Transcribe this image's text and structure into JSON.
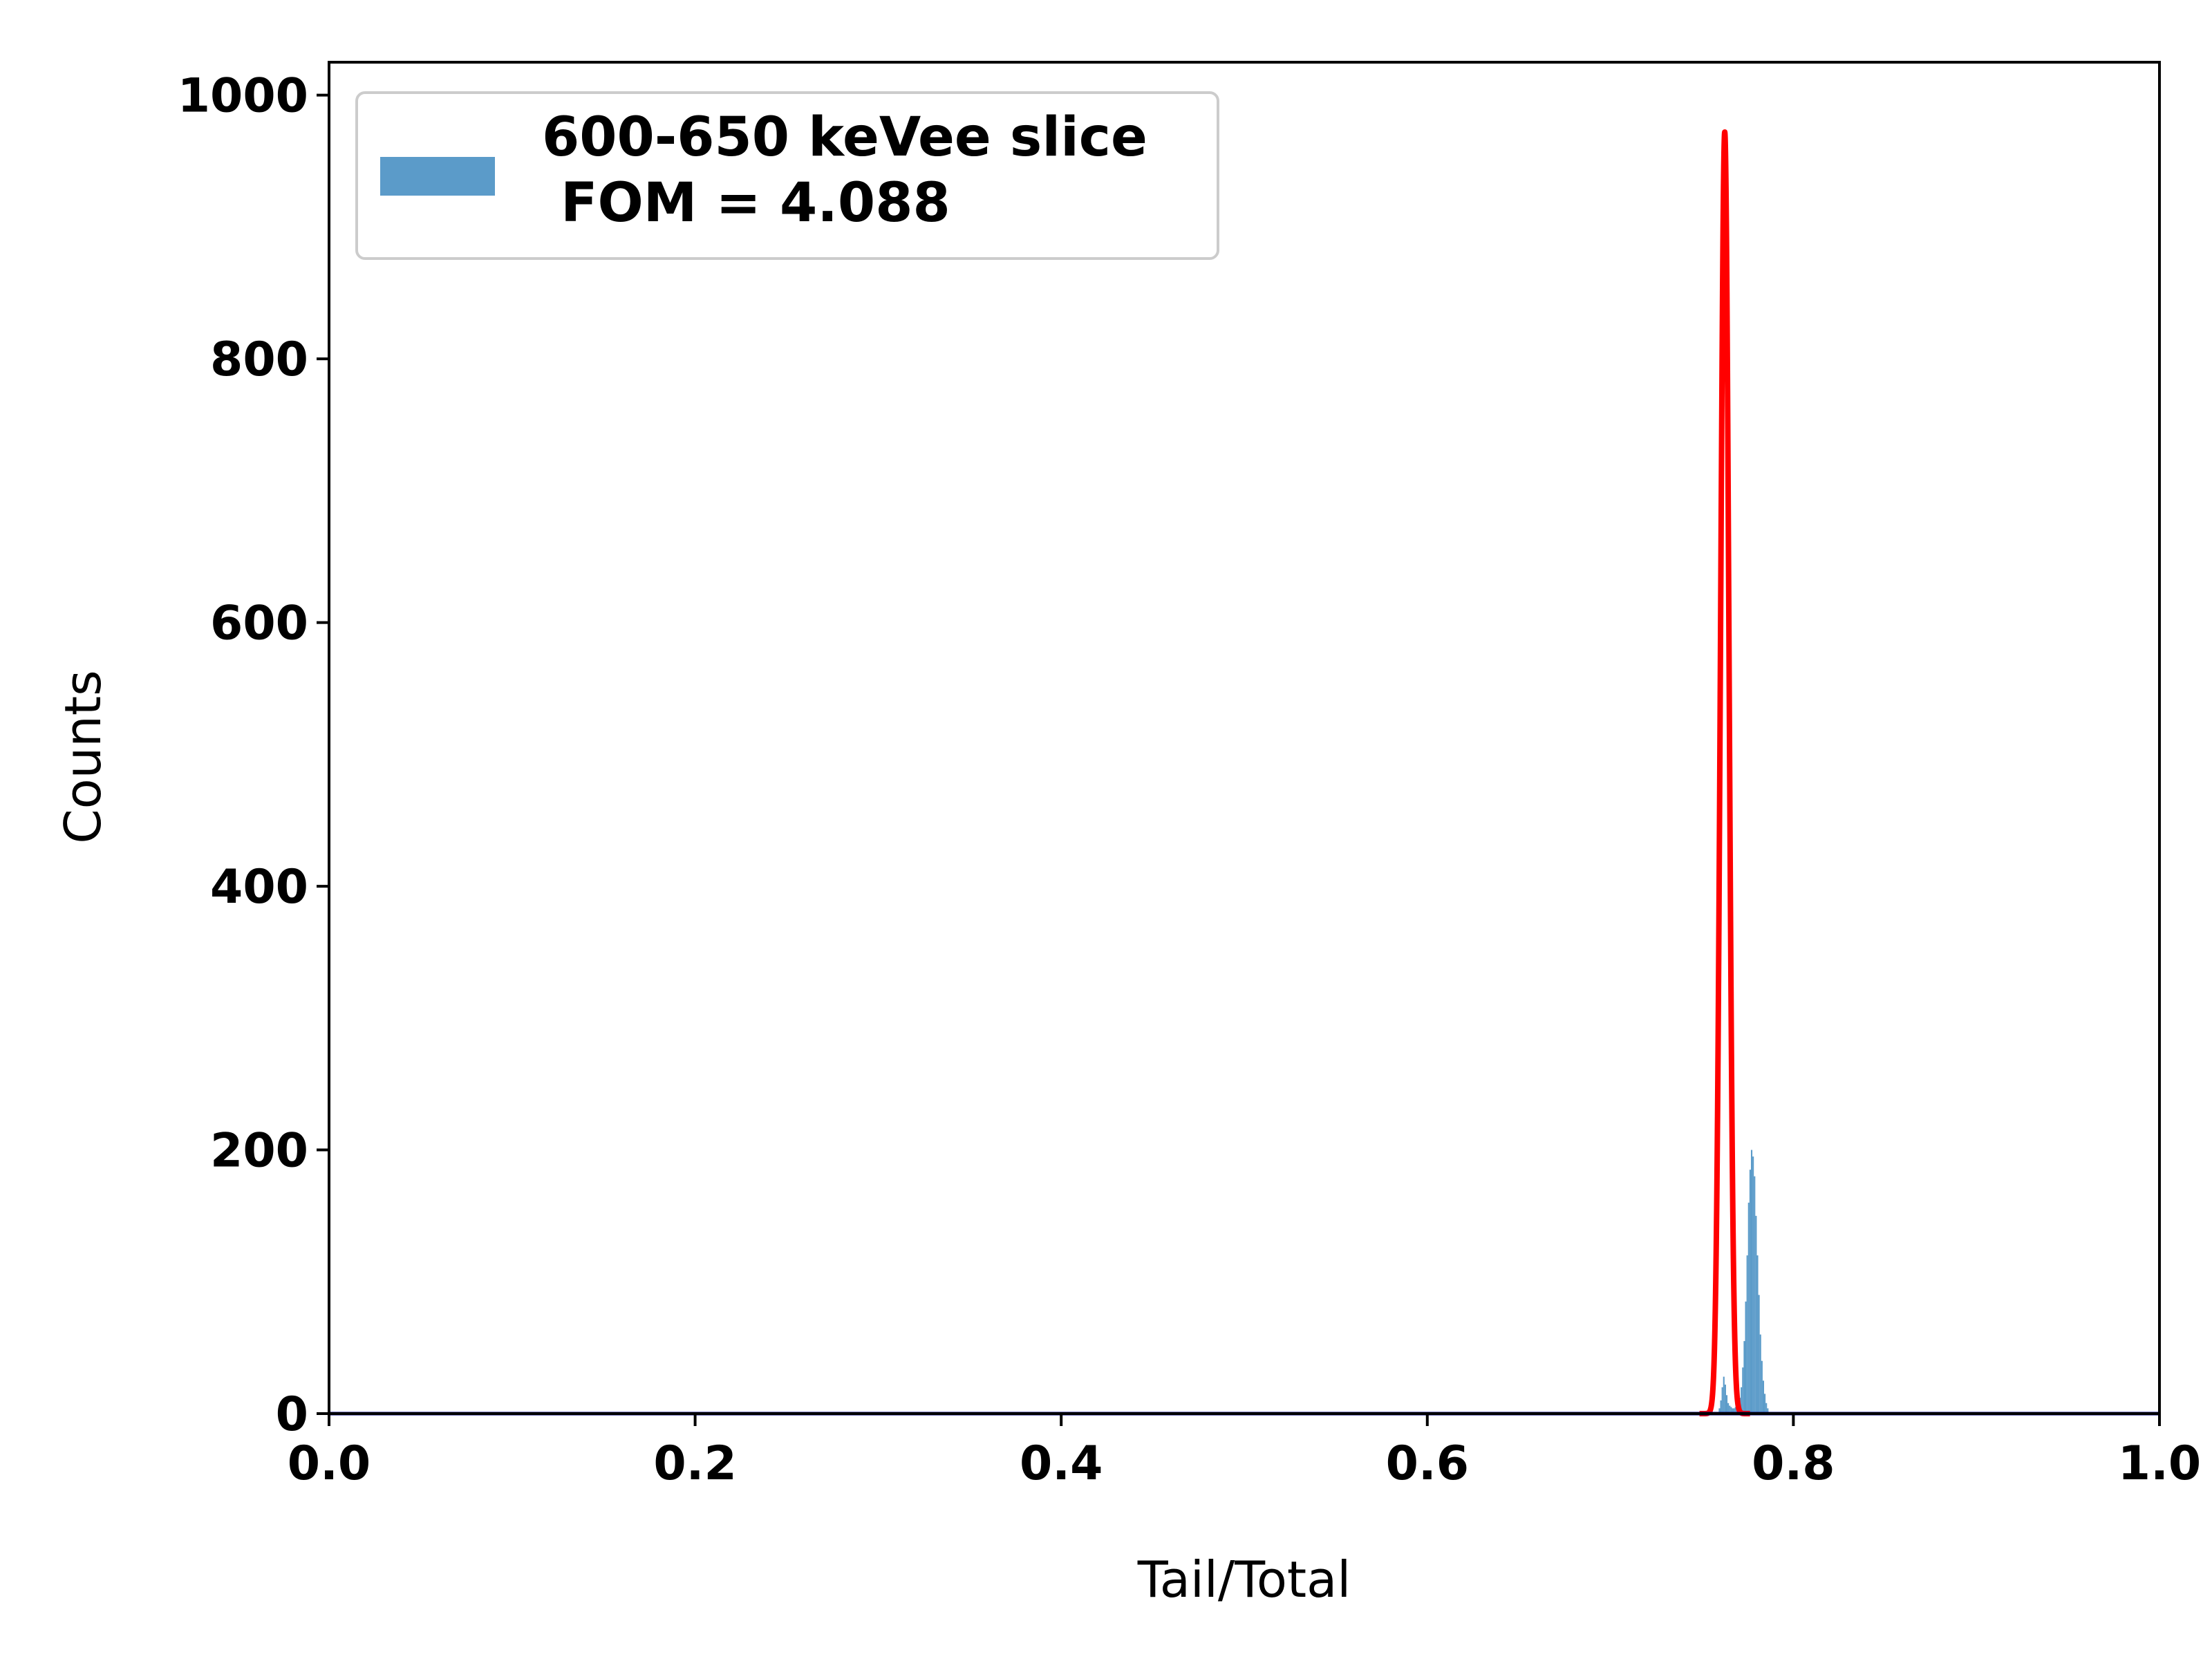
{
  "chart_data": {
    "type": "bar",
    "title": "",
    "xlabel": "Tail/Total",
    "ylabel": "Counts",
    "xlim": [
      0.0,
      1.0
    ],
    "ylim": [
      0,
      1025
    ],
    "x_ticks": [
      0.0,
      0.2,
      0.4,
      0.6,
      0.8,
      1.0
    ],
    "x_tick_labels": [
      "0.0",
      "0.2",
      "0.4",
      "0.6",
      "0.8",
      "1.0"
    ],
    "y_ticks": [
      0,
      200,
      400,
      600,
      800,
      1000
    ],
    "y_tick_labels": [
      "0",
      "200",
      "400",
      "600",
      "800",
      "1000"
    ],
    "grid": false,
    "legend": {
      "placement": "upper-left",
      "lines": [
        "600-650 keVee slice",
        " FOM = 4.088"
      ]
    },
    "colors": {
      "histogram": "#5b9bc9",
      "fit": "#ff0000",
      "baseline": "#00008b"
    },
    "histogram": {
      "bin_width": 0.0008,
      "bins": [
        {
          "x": 0.7596,
          "y": 4
        },
        {
          "x": 0.7604,
          "y": 10
        },
        {
          "x": 0.7612,
          "y": 20
        },
        {
          "x": 0.762,
          "y": 28
        },
        {
          "x": 0.7628,
          "y": 22
        },
        {
          "x": 0.7636,
          "y": 14
        },
        {
          "x": 0.7644,
          "y": 8
        },
        {
          "x": 0.7652,
          "y": 6
        },
        {
          "x": 0.766,
          "y": 5
        },
        {
          "x": 0.7668,
          "y": 4
        },
        {
          "x": 0.7676,
          "y": 4
        },
        {
          "x": 0.7684,
          "y": 5
        },
        {
          "x": 0.7692,
          "y": 6
        },
        {
          "x": 0.77,
          "y": 8
        },
        {
          "x": 0.7708,
          "y": 12
        },
        {
          "x": 0.7716,
          "y": 20
        },
        {
          "x": 0.7724,
          "y": 35
        },
        {
          "x": 0.7732,
          "y": 55
        },
        {
          "x": 0.774,
          "y": 85
        },
        {
          "x": 0.7748,
          "y": 120
        },
        {
          "x": 0.7756,
          "y": 160
        },
        {
          "x": 0.7764,
          "y": 185
        },
        {
          "x": 0.7772,
          "y": 200
        },
        {
          "x": 0.778,
          "y": 195
        },
        {
          "x": 0.7788,
          "y": 180
        },
        {
          "x": 0.7796,
          "y": 150
        },
        {
          "x": 0.7804,
          "y": 120
        },
        {
          "x": 0.7812,
          "y": 90
        },
        {
          "x": 0.782,
          "y": 60
        },
        {
          "x": 0.7828,
          "y": 40
        },
        {
          "x": 0.7836,
          "y": 25
        },
        {
          "x": 0.7844,
          "y": 15
        },
        {
          "x": 0.7852,
          "y": 8
        },
        {
          "x": 0.786,
          "y": 4
        }
      ]
    },
    "fit": {
      "type": "gaussian",
      "amplitude": 972,
      "mean": 0.7625,
      "sigma": 0.0023
    },
    "baseline": {
      "y": 0
    }
  }
}
